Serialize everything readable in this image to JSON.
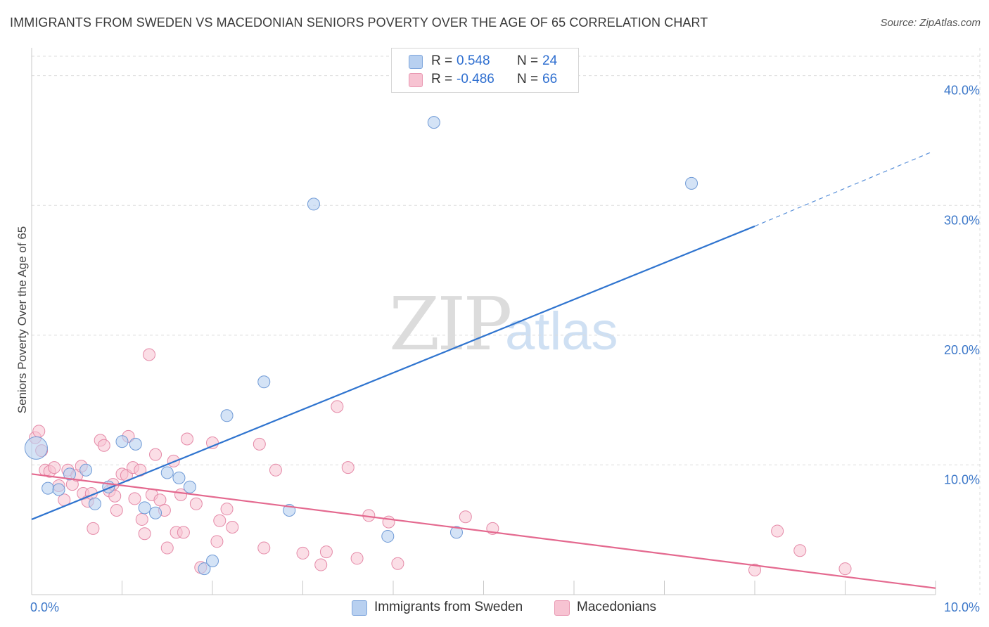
{
  "header": {
    "title": "IMMIGRANTS FROM SWEDEN VS MACEDONIAN SENIORS POVERTY OVER THE AGE OF 65 CORRELATION CHART",
    "source": "Source: ZipAtlas.com"
  },
  "watermark": {
    "zip": "ZIP",
    "atlas": "atlas"
  },
  "legend": {
    "sweden": {
      "r_label": "R =",
      "r_value": "0.548",
      "n_label": "N =",
      "n_value": "24"
    },
    "macedonian": {
      "r_label": "R =",
      "r_value": "-0.486",
      "n_label": "N =",
      "n_value": "66"
    }
  },
  "bottom_legend": {
    "sweden": "Immigrants from Sweden",
    "macedonian": "Macedonians"
  },
  "colors": {
    "blue_line": "#2f74cf",
    "pink_line": "#e4698f",
    "blue_fill": "#b8d0f0",
    "pink_fill": "#f7c3d2",
    "axis_label": "#3d78c9"
  },
  "chart_data": {
    "type": "scatter",
    "title": "IMMIGRANTS FROM SWEDEN VS MACEDONIAN SENIORS POVERTY OVER THE AGE OF 65 CORRELATION CHART",
    "xlabel": "",
    "ylabel": "Seniors Poverty Over the Age of 65",
    "xlim": [
      0,
      10
    ],
    "ylim": [
      0,
      41.5
    ],
    "x_tick_labels": [
      "0.0%",
      "10.0%"
    ],
    "y_ticks": [
      10,
      20,
      30,
      40
    ],
    "y_tick_labels": [
      "10.0%",
      "20.0%",
      "30.0%",
      "40.0%"
    ],
    "grid": true,
    "series": [
      {
        "name": "Immigrants from Sweden",
        "color": "#2f74cf",
        "trend": {
          "x0": 0,
          "y0": 5.8,
          "x1": 8.0,
          "y1": 28.4,
          "dash_x1": 9.95,
          "dash_y1": 34.1
        },
        "points": [
          {
            "x": 0.05,
            "y": 11.3,
            "big": true
          },
          {
            "x": 0.18,
            "y": 8.2
          },
          {
            "x": 0.3,
            "y": 8.1
          },
          {
            "x": 0.42,
            "y": 9.3
          },
          {
            "x": 0.6,
            "y": 9.6
          },
          {
            "x": 0.7,
            "y": 7.0
          },
          {
            "x": 0.85,
            "y": 8.3
          },
          {
            "x": 1.0,
            "y": 11.8
          },
          {
            "x": 1.15,
            "y": 11.6
          },
          {
            "x": 1.25,
            "y": 6.7
          },
          {
            "x": 1.37,
            "y": 6.3
          },
          {
            "x": 1.5,
            "y": 9.4
          },
          {
            "x": 1.63,
            "y": 9.0
          },
          {
            "x": 1.75,
            "y": 8.3
          },
          {
            "x": 1.91,
            "y": 2.0
          },
          {
            "x": 2.0,
            "y": 2.6
          },
          {
            "x": 2.16,
            "y": 13.8
          },
          {
            "x": 2.57,
            "y": 16.4
          },
          {
            "x": 2.85,
            "y": 6.5
          },
          {
            "x": 3.12,
            "y": 30.1
          },
          {
            "x": 3.94,
            "y": 4.5
          },
          {
            "x": 4.45,
            "y": 36.4
          },
          {
            "x": 4.7,
            "y": 4.8
          },
          {
            "x": 7.3,
            "y": 31.7
          }
        ]
      },
      {
        "name": "Macedonians",
        "color": "#e4698f",
        "trend": {
          "x0": 0,
          "y0": 9.3,
          "x1": 10.0,
          "y1": 0.5
        },
        "points": [
          {
            "x": 0.04,
            "y": 12.1
          },
          {
            "x": 0.08,
            "y": 12.6
          },
          {
            "x": 0.11,
            "y": 11.1
          },
          {
            "x": 0.15,
            "y": 9.6
          },
          {
            "x": 0.2,
            "y": 9.5
          },
          {
            "x": 0.25,
            "y": 9.8
          },
          {
            "x": 0.3,
            "y": 8.4
          },
          {
            "x": 0.36,
            "y": 7.3
          },
          {
            "x": 0.4,
            "y": 9.6
          },
          {
            "x": 0.45,
            "y": 8.5
          },
          {
            "x": 0.5,
            "y": 9.2
          },
          {
            "x": 0.55,
            "y": 9.9
          },
          {
            "x": 0.57,
            "y": 7.8
          },
          {
            "x": 0.62,
            "y": 7.2
          },
          {
            "x": 0.66,
            "y": 7.8
          },
          {
            "x": 0.68,
            "y": 5.1
          },
          {
            "x": 0.76,
            "y": 11.9
          },
          {
            "x": 0.8,
            "y": 11.5
          },
          {
            "x": 0.86,
            "y": 8.0
          },
          {
            "x": 0.9,
            "y": 8.5
          },
          {
            "x": 0.92,
            "y": 7.6
          },
          {
            "x": 0.94,
            "y": 6.5
          },
          {
            "x": 1.0,
            "y": 9.3
          },
          {
            "x": 1.05,
            "y": 9.2
          },
          {
            "x": 1.07,
            "y": 12.2
          },
          {
            "x": 1.12,
            "y": 9.8
          },
          {
            "x": 1.14,
            "y": 7.4
          },
          {
            "x": 1.2,
            "y": 9.6
          },
          {
            "x": 1.22,
            "y": 5.8
          },
          {
            "x": 1.25,
            "y": 4.7
          },
          {
            "x": 1.3,
            "y": 18.5
          },
          {
            "x": 1.33,
            "y": 7.7
          },
          {
            "x": 1.37,
            "y": 10.8
          },
          {
            "x": 1.42,
            "y": 7.3
          },
          {
            "x": 1.47,
            "y": 6.5
          },
          {
            "x": 1.5,
            "y": 3.6
          },
          {
            "x": 1.57,
            "y": 10.3
          },
          {
            "x": 1.6,
            "y": 4.8
          },
          {
            "x": 1.65,
            "y": 7.7
          },
          {
            "x": 1.68,
            "y": 4.8
          },
          {
            "x": 1.72,
            "y": 12.0
          },
          {
            "x": 1.82,
            "y": 7.0
          },
          {
            "x": 1.87,
            "y": 2.1
          },
          {
            "x": 2.0,
            "y": 11.7
          },
          {
            "x": 2.05,
            "y": 4.1
          },
          {
            "x": 2.08,
            "y": 5.7
          },
          {
            "x": 2.16,
            "y": 6.6
          },
          {
            "x": 2.22,
            "y": 5.2
          },
          {
            "x": 2.52,
            "y": 11.6
          },
          {
            "x": 2.57,
            "y": 3.6
          },
          {
            "x": 2.7,
            "y": 9.6
          },
          {
            "x": 3.0,
            "y": 3.2
          },
          {
            "x": 3.2,
            "y": 2.3
          },
          {
            "x": 3.26,
            "y": 3.3
          },
          {
            "x": 3.38,
            "y": 14.5
          },
          {
            "x": 3.5,
            "y": 9.8
          },
          {
            "x": 3.6,
            "y": 2.8
          },
          {
            "x": 3.73,
            "y": 6.1
          },
          {
            "x": 3.95,
            "y": 5.6
          },
          {
            "x": 4.05,
            "y": 2.4
          },
          {
            "x": 4.8,
            "y": 6.0
          },
          {
            "x": 5.1,
            "y": 5.1
          },
          {
            "x": 8.0,
            "y": 1.9
          },
          {
            "x": 8.25,
            "y": 4.9
          },
          {
            "x": 8.5,
            "y": 3.4
          },
          {
            "x": 9.0,
            "y": 2.0
          }
        ]
      }
    ]
  }
}
